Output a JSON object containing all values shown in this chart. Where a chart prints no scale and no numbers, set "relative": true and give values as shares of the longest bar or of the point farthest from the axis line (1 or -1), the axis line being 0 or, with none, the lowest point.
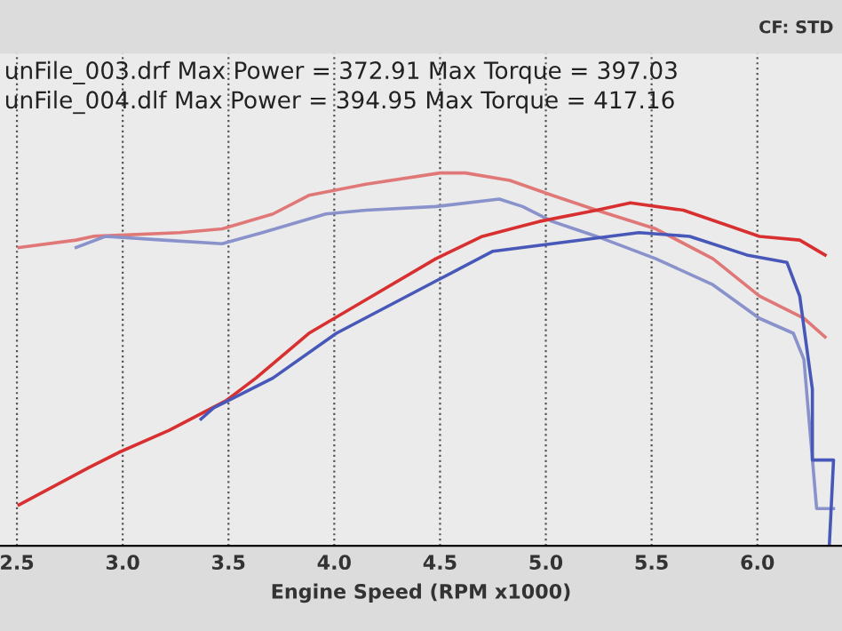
{
  "chart_data": {
    "type": "line",
    "relative": true,
    "xlabel": "Engine Speed (RPM x1000)",
    "annotations": [
      "CF: STD",
      "unFile_003.drf Max Power = 372.91 Max Torque = 397.03",
      "unFile_004.dlf Max Power = 394.95 Max Torque = 417.16"
    ],
    "xlim": [
      2.42,
      6.4
    ],
    "xticks": [
      {
        "value": 2.5,
        "label": "2.5"
      },
      {
        "value": 3,
        "label": "3.0"
      },
      {
        "value": 3.5,
        "label": "3.5"
      },
      {
        "value": 4,
        "label": "4.0"
      },
      {
        "value": 4.5,
        "label": "4.5"
      },
      {
        "value": 5,
        "label": "5.0"
      },
      {
        "value": 5.5,
        "label": "5.5"
      },
      {
        "value": 6,
        "label": "6.0"
      }
    ],
    "grid": "x",
    "marker": "none",
    "line_style": "solid",
    "series": [
      {
        "color": "#e07878",
        "x": [
          2.51,
          2.78,
          2.86,
          3.27,
          3.47,
          3.71,
          3.88,
          4.15,
          4.5,
          4.62,
          4.83,
          5.03,
          5.24,
          5.52,
          5.79,
          6.01,
          6.22,
          6.32
        ],
        "values": [
          0.8,
          0.82,
          0.83,
          0.84,
          0.85,
          0.89,
          0.94,
          0.97,
          1.0,
          1.0,
          0.98,
          0.94,
          0.9,
          0.85,
          0.77,
          0.67,
          0.61,
          0.56
        ]
      },
      {
        "color": "#8a92cc",
        "x": [
          2.78,
          2.92,
          3.19,
          3.47,
          3.66,
          3.96,
          4.15,
          4.48,
          4.78,
          4.89,
          5.03,
          5.24,
          5.52,
          5.79,
          6.01,
          6.17,
          6.22,
          6.28,
          6.36
        ],
        "values": [
          0.8,
          0.83,
          0.82,
          0.81,
          0.84,
          0.89,
          0.9,
          0.91,
          0.93,
          0.91,
          0.87,
          0.83,
          0.77,
          0.7,
          0.61,
          0.57,
          0.5,
          0.1,
          0.1
        ]
      },
      {
        "color": "#d83030",
        "x": [
          2.51,
          2.84,
          2.98,
          3.22,
          3.49,
          3.63,
          3.88,
          4.15,
          4.48,
          4.7,
          4.97,
          5.24,
          5.4,
          5.65,
          6.01,
          6.2,
          6.32
        ],
        "values": [
          0.11,
          0.21,
          0.25,
          0.31,
          0.39,
          0.45,
          0.57,
          0.66,
          0.77,
          0.83,
          0.87,
          0.9,
          0.92,
          0.9,
          0.83,
          0.82,
          0.78
        ]
      },
      {
        "color": "#4858b8",
        "x": [
          3.37,
          3.43,
          3.71,
          4.01,
          4.48,
          4.75,
          5.03,
          5.44,
          5.68,
          5.95,
          6.14,
          6.2,
          6.26,
          6.26,
          6.36,
          6.34
        ],
        "values": [
          0.34,
          0.37,
          0.45,
          0.57,
          0.71,
          0.79,
          0.81,
          0.84,
          0.83,
          0.78,
          0.76,
          0.67,
          0.42,
          0.23,
          0.23,
          0.0
        ]
      }
    ]
  }
}
